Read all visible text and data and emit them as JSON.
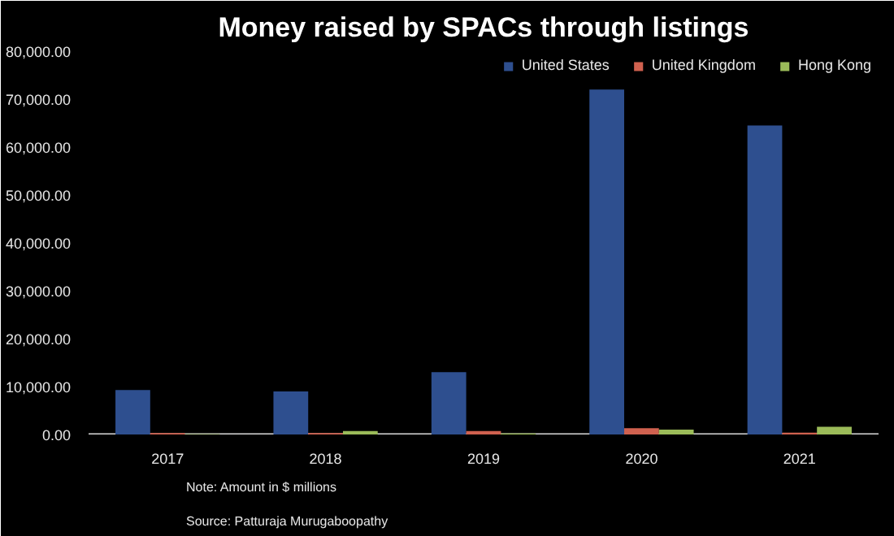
{
  "chart_data": {
    "type": "bar",
    "title": "Money raised by SPACs through listings",
    "categories": [
      "2017",
      "2018",
      "2019",
      "2020",
      "2021"
    ],
    "series": [
      {
        "name": "United States",
        "color": "#2e4f8f",
        "values": [
          9300,
          9000,
          13000,
          72000,
          64500
        ]
      },
      {
        "name": "United Kingdom",
        "color": "#d0614f",
        "values": [
          300,
          300,
          700,
          1300,
          400
        ]
      },
      {
        "name": "Hong Kong",
        "color": "#9bbb59",
        "values": [
          100,
          700,
          200,
          1000,
          1600
        ]
      }
    ],
    "ylim": [
      0,
      80000
    ],
    "yticks": [
      {
        "value": 0,
        "label": "0.00"
      },
      {
        "value": 10000,
        "label": "10,000.00"
      },
      {
        "value": 20000,
        "label": "20,000.00"
      },
      {
        "value": 30000,
        "label": "30,000.00"
      },
      {
        "value": 40000,
        "label": "40,000.00"
      },
      {
        "value": 50000,
        "label": "50,000.00"
      },
      {
        "value": 60000,
        "label": "60,000.00"
      },
      {
        "value": 70000,
        "label": "70,000.00"
      },
      {
        "value": 80000,
        "label": "80,000.00"
      }
    ],
    "grid": false,
    "legend": "top right",
    "annotations": [
      "Note: Amount in $ millions",
      "Source: Patturaja Murugaboopathy"
    ]
  }
}
